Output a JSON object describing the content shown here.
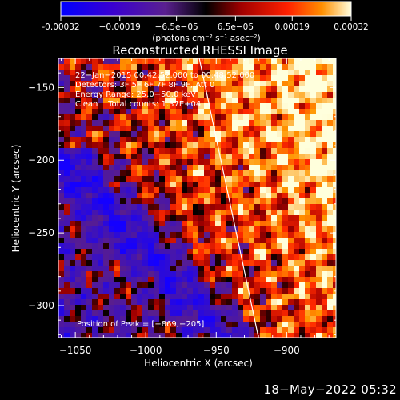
{
  "chart_data": {
    "type": "heatmap",
    "title": "Reconstructed RHESSI Image",
    "xlabel": "Heliocentric X (arcsec)",
    "ylabel": "Heliocentric Y (arcsec)",
    "xlim": [
      -1062,
      -865
    ],
    "ylim": [
      -322,
      -130
    ],
    "x_ticks": [
      -1050,
      -1000,
      -950,
      -900
    ],
    "x_tick_labels": [
      "−1050",
      "−1000",
      "−950",
      "−900"
    ],
    "y_ticks": [
      -150,
      -200,
      -250,
      -300
    ],
    "y_tick_labels": [
      "−150",
      "−200",
      "−250",
      "−300"
    ],
    "colorbar": {
      "range": [
        -0.00032,
        0.00032
      ],
      "ticks": [
        -0.00032,
        -0.00019,
        -6.5e-05,
        6.5e-05,
        0.00019,
        0.00032
      ],
      "tick_labels": [
        "-0.00032",
        "−0.00019",
        "−6.5e−05",
        "6.5e−05",
        "0.00019",
        "0.00032"
      ],
      "units": "(photons cm⁻² s⁻¹ asec⁻²)"
    },
    "annotations": [
      "22−Jan−2015 00:42:52.000 to 00:48:52.000",
      "Detectors: 3F 5F 6F 7F 8F 9F, Att 0",
      "Energy Range: 25.0−50.0 keV",
      "Clean    Total counts: 1.37E+04"
    ],
    "peak_label": "Position of Peak = [−869,−205]",
    "peak_position": [
      -869,
      -205
    ],
    "limb_line": [
      [
        -962,
        -130
      ],
      [
        -920,
        -322
      ]
    ]
  },
  "footer": {
    "date_stamp": "18−May−2022 05:32"
  },
  "colors": {
    "background": "#000000",
    "text": "#ffffff",
    "limb": "#ffffff"
  }
}
